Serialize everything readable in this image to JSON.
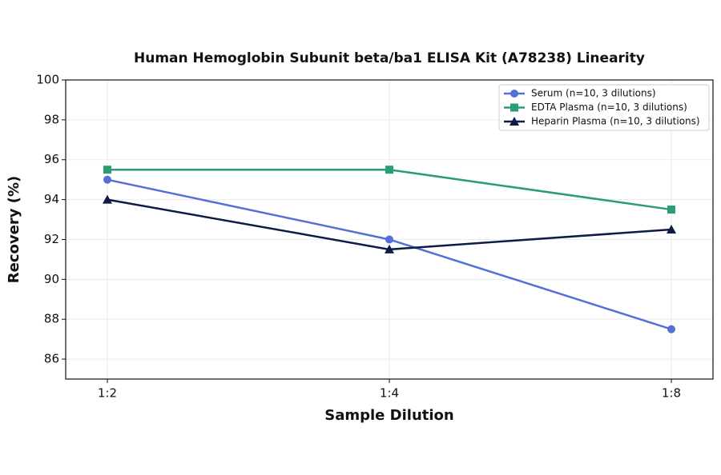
{
  "chart_data": {
    "type": "line",
    "title": "Human Hemoglobin Subunit beta/ba1 ELISA Kit (A78238) Linearity",
    "x_label": "Sample Dilution",
    "y_label": "Recovery (%)",
    "categories": [
      "1:2",
      "1:4",
      "1:8"
    ],
    "series": [
      {
        "name": "Serum (n=10, 3 dilutions)",
        "color": "#5470d6",
        "marker": "circle",
        "values": [
          95,
          92,
          87.5
        ]
      },
      {
        "name": "EDTA Plasma (n=10, 3 dilutions)",
        "color": "#2a9d74",
        "marker": "square",
        "values": [
          95.5,
          95.5,
          93.5
        ]
      },
      {
        "name": "Heparin Plasma (n=10, 3 dilutions)",
        "color": "#0d1b45",
        "marker": "triangle",
        "values": [
          94,
          91.5,
          92.5
        ]
      }
    ],
    "ylim": [
      85,
      100
    ],
    "yticks": [
      86,
      88,
      90,
      92,
      94,
      96,
      98,
      100
    ],
    "grid": true,
    "legend": "upper right"
  }
}
